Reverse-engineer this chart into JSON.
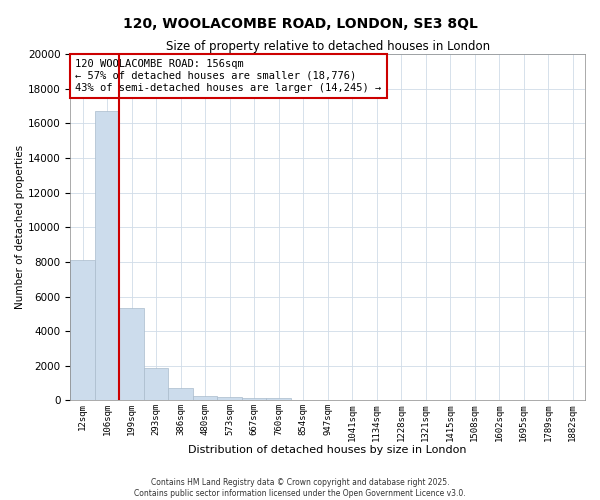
{
  "title": "120, WOOLACOMBE ROAD, LONDON, SE3 8QL",
  "subtitle": "Size of property relative to detached houses in London",
  "xlabel": "Distribution of detached houses by size in London",
  "ylabel": "Number of detached properties",
  "bar_color": "#ccdcec",
  "bar_edgecolor": "#aabbcc",
  "categories": [
    "12sqm",
    "106sqm",
    "199sqm",
    "293sqm",
    "386sqm",
    "480sqm",
    "573sqm",
    "667sqm",
    "760sqm",
    "854sqm",
    "947sqm",
    "1041sqm",
    "1134sqm",
    "1228sqm",
    "1321sqm",
    "1415sqm",
    "1508sqm",
    "1602sqm",
    "1695sqm",
    "1789sqm",
    "1882sqm"
  ],
  "values": [
    8100,
    16700,
    5350,
    1850,
    700,
    250,
    200,
    150,
    120,
    0,
    0,
    0,
    0,
    0,
    0,
    0,
    0,
    0,
    0,
    0,
    0
  ],
  "ylim": [
    0,
    20000
  ],
  "yticks": [
    0,
    2000,
    4000,
    6000,
    8000,
    10000,
    12000,
    14000,
    16000,
    18000,
    20000
  ],
  "property_line_x": 1.5,
  "annotation_title": "120 WOOLACOMBE ROAD: 156sqm",
  "annotation_line1": "← 57% of detached houses are smaller (18,776)",
  "annotation_line2": "43% of semi-detached houses are larger (14,245) →",
  "annotation_box_color": "#cc0000",
  "grid_color": "#d0dce8",
  "background_color": "#ffffff",
  "footer_line1": "Contains HM Land Registry data © Crown copyright and database right 2025.",
  "footer_line2": "Contains public sector information licensed under the Open Government Licence v3.0."
}
